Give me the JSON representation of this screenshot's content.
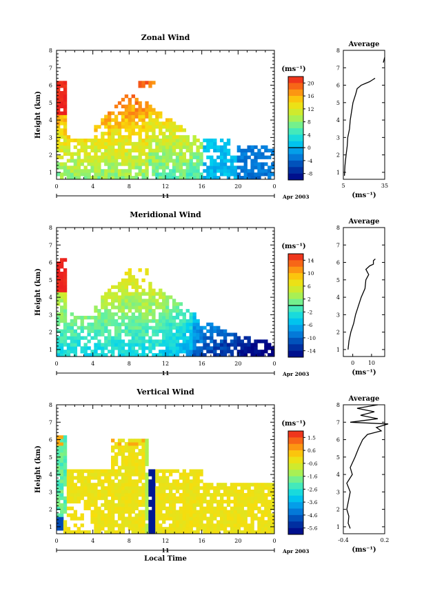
{
  "chart_data": [
    {
      "type": "heatmap",
      "title": "Zonal Wind",
      "ylabel": "Height (km)",
      "ylim": [
        0.6,
        8
      ],
      "xlim": [
        0,
        24
      ],
      "x_ticks": [
        "0",
        "4",
        "8",
        "12",
        "16",
        "20",
        "0"
      ],
      "y_ticks": [
        "1",
        "2",
        "3",
        "4",
        "5",
        "6",
        "7",
        "8"
      ],
      "date_axis": {
        "day": "11",
        "month_year": "Apr 2003"
      },
      "colorbar": {
        "unit": "(ms⁻¹)",
        "ticks": [
          "20",
          "16",
          "12",
          "8",
          "4",
          "0",
          "-4",
          "-8"
        ],
        "min": -10,
        "max": 22
      },
      "contour_at": 0,
      "average": {
        "title": "Average",
        "xlabel": "(ms⁻¹)",
        "x_ticks": [
          "5",
          "35"
        ],
        "xlim": [
          5,
          35
        ],
        "profile": [
          [
            5.8,
            0.8
          ],
          [
            6.2,
            1.4
          ],
          [
            7,
            2
          ],
          [
            7.8,
            2.5
          ],
          [
            8.2,
            3
          ],
          [
            9.5,
            3.5
          ],
          [
            10,
            4
          ],
          [
            11,
            4.5
          ],
          [
            12,
            5
          ],
          [
            14,
            5.5
          ],
          [
            15,
            5.8
          ],
          [
            18,
            6
          ],
          [
            21,
            6.1
          ],
          [
            24,
            6.2
          ],
          [
            26,
            6.3
          ],
          [
            28,
            6.4
          ]
        ],
        "profile_top": [
          [
            34,
            7.3
          ],
          [
            35,
            7.6
          ]
        ]
      }
    },
    {
      "type": "heatmap",
      "title": "Meridional Wind",
      "ylabel": "Height (km)",
      "ylim": [
        0.6,
        8
      ],
      "xlim": [
        0,
        24
      ],
      "x_ticks": [
        "0",
        "4",
        "8",
        "12",
        "16",
        "20",
        "0"
      ],
      "y_ticks": [
        "1",
        "2",
        "3",
        "4",
        "5",
        "6",
        "7",
        "8"
      ],
      "date_axis": {
        "day": "11",
        "month_year": "Apr 2003"
      },
      "colorbar": {
        "unit": "(ms⁻¹)",
        "ticks": [
          "14",
          "10",
          "6",
          "2",
          "-2",
          "-6",
          "-10",
          "-14"
        ],
        "min": -16,
        "max": 16
      },
      "contour_at": 0,
      "average": {
        "title": "Average",
        "xlabel": "(ms⁻¹)",
        "x_ticks": [
          "0",
          "10"
        ],
        "xlim": [
          -5,
          17
        ],
        "profile": [
          [
            -2.5,
            1
          ],
          [
            -2,
            1.5
          ],
          [
            -1,
            2
          ],
          [
            0.5,
            2.5
          ],
          [
            1.5,
            3
          ],
          [
            3,
            3.5
          ],
          [
            4.5,
            4
          ],
          [
            6.5,
            4.5
          ],
          [
            7,
            5
          ],
          [
            8.5,
            5.3
          ],
          [
            7,
            5.6
          ],
          [
            9,
            5.8
          ],
          [
            11,
            5.9
          ],
          [
            11,
            6.1
          ],
          [
            12,
            6.2
          ]
        ]
      }
    },
    {
      "type": "heatmap",
      "title": "Vertical Wind",
      "xlabel": "Local Time",
      "ylabel": "Height (km)",
      "ylim": [
        0.6,
        8
      ],
      "xlim": [
        0,
        24
      ],
      "x_ticks": [
        "0",
        "4",
        "8",
        "12",
        "16",
        "20",
        "0"
      ],
      "y_ticks": [
        "1",
        "2",
        "3",
        "4",
        "5",
        "6",
        "7",
        "8"
      ],
      "date_axis": {
        "day": "11",
        "month_year": "Apr 2003"
      },
      "colorbar": {
        "unit": "(ms⁻¹)",
        "ticks": [
          "1.5",
          "0.6",
          "-0.6",
          "-1.6",
          "-2.6",
          "-3.6",
          "-4.6",
          "-5.6"
        ],
        "min": -6.2,
        "max": 2.1
      },
      "average": {
        "title": "Average",
        "xlabel": "(ms⁻¹)",
        "x_ticks": [
          "-0.4",
          "0.2"
        ],
        "xlim": [
          -0.4,
          0.2
        ],
        "profile": [
          [
            -0.3,
            0.9
          ],
          [
            -0.33,
            1.2
          ],
          [
            -0.32,
            1.6
          ],
          [
            -0.35,
            2
          ],
          [
            -0.33,
            2.4
          ],
          [
            -0.3,
            3
          ],
          [
            -0.35,
            3.5
          ],
          [
            -0.27,
            4
          ],
          [
            -0.3,
            4.4
          ],
          [
            -0.23,
            5
          ],
          [
            -0.18,
            5.5
          ],
          [
            -0.12,
            6
          ],
          [
            -0.05,
            6.3
          ],
          [
            0.15,
            6.5
          ],
          [
            0.08,
            6.7
          ],
          [
            0.25,
            6.9
          ],
          [
            -0.3,
            7
          ],
          [
            0.1,
            7.2
          ],
          [
            -0.15,
            7.4
          ],
          [
            0.05,
            7.6
          ],
          [
            -0.2,
            7.8
          ],
          [
            0.1,
            8
          ]
        ]
      }
    }
  ]
}
